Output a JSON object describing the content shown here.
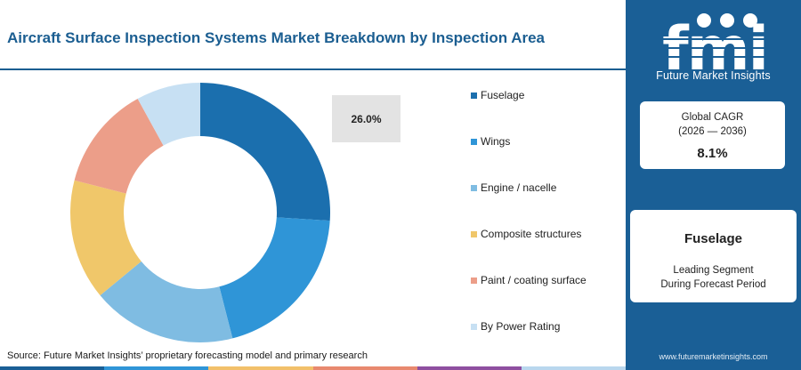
{
  "header": {
    "title": "Aircraft Surface Inspection Systems Market Breakdown by Inspection Area"
  },
  "chart_data": {
    "type": "pie",
    "donut": true,
    "categories": [
      "Fuselage",
      "Wings",
      "Engine / nacelle",
      "Composite structures",
      "Paint / coating surface",
      "By Power Rating"
    ],
    "values": [
      26.0,
      20.0,
      18.0,
      15.0,
      13.0,
      8.0
    ],
    "colors": [
      "#1b6fae",
      "#2f95d7",
      "#7fbce2",
      "#f0c76a",
      "#ec9e89",
      "#c7e0f3"
    ],
    "callout_label": "26.0%"
  },
  "source": "Source: Future Market Insights’ proprietary forecasting model and primary research",
  "bottom_bar_colors": [
    "#1a5f96",
    "#2f95d7",
    "#f2c06a",
    "#e8896f",
    "#8e4fa0",
    "#b9d7ee"
  ],
  "sidebar": {
    "brand": "Future Market Insights",
    "cagr_line1": "Global CAGR",
    "cagr_line2": "(2026 — 2036)",
    "cagr_value": "8.1%",
    "segment_name": "Fuselage",
    "segment_line1": "Leading Segment",
    "segment_line2": "During Forecast Period",
    "website": "www.futuremarketinsights.com"
  }
}
